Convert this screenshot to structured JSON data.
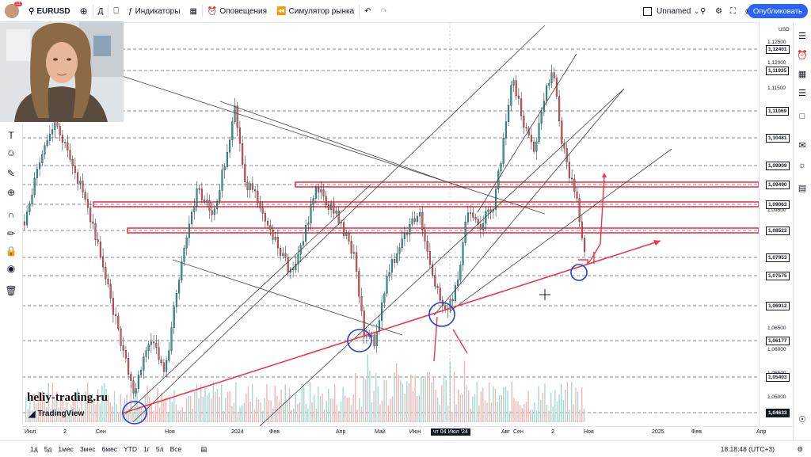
{
  "toolbar": {
    "notif_count": "11",
    "symbol": "EURUSD",
    "interval": "Д",
    "indicators": "Индикаторы",
    "alerts": "Оповещения",
    "replay": "Симулятор рынка",
    "layout_name": "Unnamed",
    "publish": "Опубликовать"
  },
  "chart": {
    "currency": "USD",
    "price_labels": [
      "1,12500",
      "1,12000",
      "1,11500",
      "1,09500",
      "1,07000",
      "1,06500",
      "1,06000",
      "1,05500",
      "1,05000"
    ],
    "level_labels": [
      "1,12401",
      "1,11935",
      "1,11069",
      "1,10481",
      "1,09909",
      "1,09490",
      "1,09063",
      "1,08522",
      "1,07953",
      "1,07575",
      "1,06912",
      "1,06177",
      "1,05403",
      "1,04633"
    ],
    "x_labels": [
      "Июл",
      "2",
      "Сен",
      "Ноя",
      "2024",
      "Фев",
      "Апр",
      "Май",
      "Июн",
      "чт 04 Июл '24",
      "Авг",
      "Сен",
      "2",
      "Ноя",
      "2025",
      "Фев",
      "Апр"
    ],
    "colors": {
      "up": "#26a69a",
      "down": "#ef5350",
      "line": "#131722",
      "trend": "#f23645",
      "circle": "#1e3fe0"
    }
  },
  "bottom": {
    "ranges": [
      "1д",
      "5д",
      "1мес",
      "3мес",
      "6мес",
      "YTD",
      "1г",
      "5л",
      "Все"
    ],
    "clock": "18:18:48 (UTC+3)"
  },
  "watermark": {
    "site": "heliy-trading.ru",
    "brand": "TradingView"
  }
}
